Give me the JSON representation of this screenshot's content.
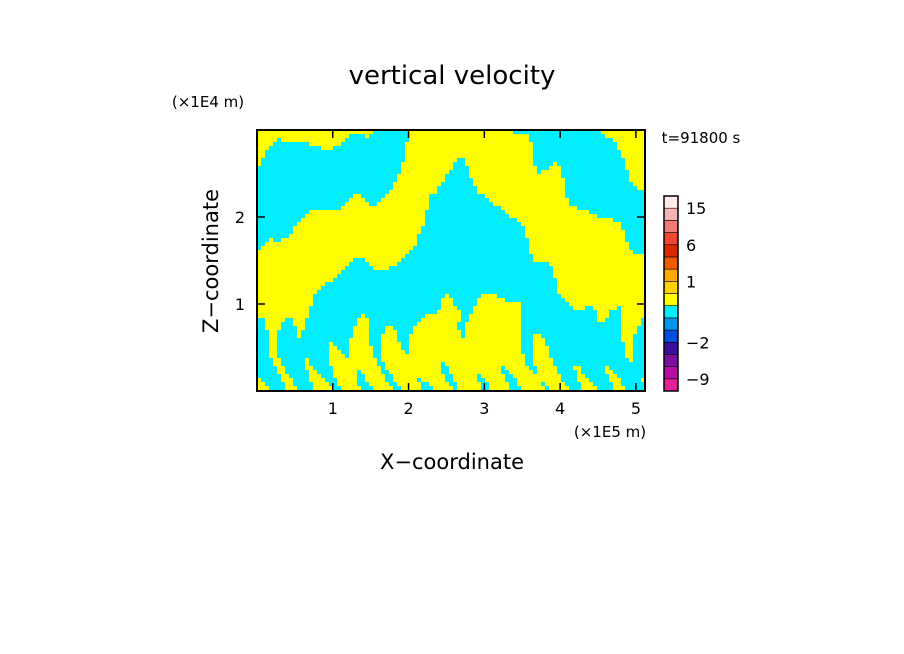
{
  "chart_data": {
    "type": "heatmap",
    "title": "vertical velocity",
    "xlabel": "X−coordinate",
    "ylabel": "Z−coordinate",
    "x_unit": "(×1E5 m)",
    "y_unit": "(×1E4 m)",
    "time_label": "t=91800 s",
    "xlim": [
      0,
      5.12
    ],
    "ylim": [
      0,
      3.0
    ],
    "x_ticks": [
      1,
      2,
      3,
      4,
      5
    ],
    "y_ticks": [
      1,
      2
    ],
    "x_tick_labels": [
      "1",
      "2",
      "3",
      "4",
      "5"
    ],
    "y_tick_labels": [
      "1",
      "2"
    ],
    "grid": false,
    "field_colors": {
      "negative": "#00eeff",
      "positive": "#ffff00"
    },
    "colorbar": {
      "levels": [
        -12,
        -9,
        -6,
        -4,
        -2,
        -1,
        -0.5,
        0,
        0.5,
        1,
        2,
        4,
        6,
        9,
        12,
        15,
        20
      ],
      "colors": [
        "#e61e9c",
        "#b40fa0",
        "#7d0fa0",
        "#3c0f9a",
        "#0050dc",
        "#0096f0",
        "#00eeff",
        "#ffff00",
        "#ffd200",
        "#ffaa00",
        "#f05a00",
        "#dc2800",
        "#f04632",
        "#f07878",
        "#f5b4b4",
        "#fcebe6"
      ],
      "tick_values": [
        -9,
        -2,
        1,
        6,
        15
      ],
      "tick_labels": [
        "−9",
        "−2",
        "1",
        "6",
        "15"
      ]
    }
  }
}
